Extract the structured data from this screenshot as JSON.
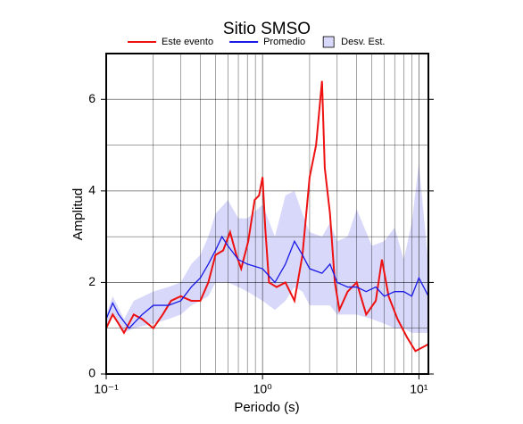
{
  "chart_data": {
    "type": "line",
    "title": "Sitio SMSO",
    "xlabel": "Periodo (s)",
    "ylabel": "Amplitud",
    "xscale": "log",
    "xlim": [
      0.1,
      11.5
    ],
    "ylim": [
      0,
      7
    ],
    "xticks": [
      {
        "value": 0.1,
        "label": "10⁻¹"
      },
      {
        "value": 1,
        "label": "10⁰"
      },
      {
        "value": 10,
        "label": "10¹"
      }
    ],
    "x_minor_ticks": [
      0.2,
      0.3,
      0.4,
      0.5,
      0.6,
      0.7,
      0.8,
      0.9,
      2,
      3,
      4,
      5,
      6,
      7,
      8,
      9
    ],
    "yticks": [
      0,
      2,
      4,
      6
    ],
    "y_minor_ticks": [
      1,
      3,
      5,
      7
    ],
    "grid": true,
    "legend": "top",
    "series": [
      {
        "name": "Desv. Est.",
        "color": "#d8d8fa",
        "x": [
          0.1,
          0.11,
          0.13,
          0.15,
          0.2,
          0.25,
          0.3,
          0.35,
          0.4,
          0.45,
          0.5,
          0.6,
          0.7,
          0.8,
          1.0,
          1.2,
          1.4,
          1.6,
          1.8,
          2.0,
          2.4,
          2.7,
          3.0,
          3.5,
          4.0,
          5.0,
          6.0,
          7.0,
          8.0,
          9.0,
          10,
          11.5
        ],
        "lower": [
          1.0,
          1.3,
          0.9,
          1.0,
          1.1,
          1.2,
          1.3,
          1.5,
          1.6,
          1.7,
          2.0,
          2.0,
          1.9,
          1.8,
          1.6,
          1.4,
          1.6,
          1.9,
          1.8,
          1.5,
          1.5,
          1.5,
          1.3,
          1.3,
          1.3,
          1.2,
          1.1,
          1.0,
          1.0,
          0.9,
          0.9,
          0.9
        ],
        "upper": [
          1.3,
          1.7,
          1.2,
          1.6,
          1.8,
          1.9,
          2.0,
          2.4,
          2.6,
          3.0,
          3.5,
          3.8,
          3.4,
          3.4,
          3.7,
          3.0,
          3.9,
          4.0,
          3.5,
          3.1,
          3.0,
          3.3,
          2.9,
          3.0,
          3.6,
          2.8,
          2.9,
          3.2,
          2.5,
          3.3,
          4.6,
          2.4
        ]
      },
      {
        "name": "Este evento",
        "color": "#ee1111",
        "x": [
          0.1,
          0.11,
          0.12,
          0.13,
          0.15,
          0.17,
          0.2,
          0.23,
          0.26,
          0.3,
          0.35,
          0.4,
          0.45,
          0.5,
          0.56,
          0.62,
          0.68,
          0.73,
          0.81,
          0.89,
          0.95,
          1.0,
          1.04,
          1.1,
          1.23,
          1.4,
          1.6,
          1.8,
          2.0,
          2.2,
          2.4,
          2.5,
          2.7,
          2.9,
          3.1,
          3.5,
          4.0,
          4.6,
          5.3,
          5.8,
          6.4,
          7.3,
          8.4,
          9.5,
          11.5
        ],
        "values": [
          1.0,
          1.3,
          1.1,
          0.9,
          1.3,
          1.2,
          1.0,
          1.3,
          1.6,
          1.7,
          1.6,
          1.6,
          2.0,
          2.6,
          2.7,
          3.1,
          2.6,
          2.3,
          2.9,
          3.8,
          3.9,
          4.3,
          3.2,
          2.0,
          1.9,
          2.0,
          1.6,
          2.6,
          4.3,
          5.0,
          6.4,
          4.5,
          3.5,
          2.0,
          1.4,
          1.8,
          2.0,
          1.3,
          1.6,
          2.5,
          1.7,
          1.2,
          0.8,
          0.5,
          0.65
        ]
      },
      {
        "name": "Promedio",
        "color": "#1a1ae6",
        "x": [
          0.1,
          0.11,
          0.12,
          0.14,
          0.17,
          0.2,
          0.25,
          0.3,
          0.35,
          0.4,
          0.45,
          0.5,
          0.55,
          0.6,
          0.7,
          0.8,
          1.0,
          1.2,
          1.4,
          1.6,
          1.8,
          2.0,
          2.4,
          2.7,
          3.0,
          3.5,
          4.0,
          4.6,
          5.3,
          6.0,
          7.0,
          8.0,
          9.0,
          10,
          11.5
        ],
        "values": [
          1.2,
          1.55,
          1.3,
          1.0,
          1.3,
          1.5,
          1.5,
          1.6,
          1.9,
          2.1,
          2.4,
          2.7,
          3.0,
          2.8,
          2.5,
          2.4,
          2.3,
          2.0,
          2.4,
          2.9,
          2.6,
          2.3,
          2.2,
          2.4,
          2.0,
          1.9,
          1.9,
          1.8,
          1.9,
          1.7,
          1.8,
          1.8,
          1.7,
          2.1,
          1.7
        ]
      }
    ]
  }
}
